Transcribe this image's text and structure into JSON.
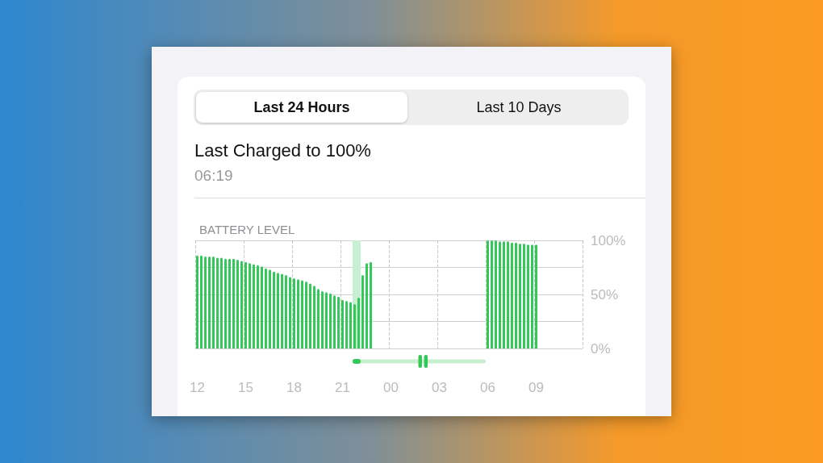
{
  "chart_data": {
    "type": "bar",
    "title": "BATTERY LEVEL",
    "annotations": [
      "Last 24 Hours",
      "Last 10 Days",
      "Last Charged to 100%",
      "06:19"
    ],
    "categories": [
      "12",
      null,
      null,
      null,
      null,
      null,
      null,
      null,
      null,
      null,
      null,
      null,
      "15",
      null,
      null,
      null,
      null,
      null,
      null,
      null,
      null,
      null,
      null,
      null,
      "18",
      null,
      null,
      null,
      null,
      null,
      null,
      null,
      null,
      null,
      null,
      null,
      "21",
      null,
      null,
      null,
      null,
      null,
      null,
      null,
      null,
      null,
      null,
      null,
      "00",
      null,
      null,
      null,
      null,
      null,
      null,
      null,
      null,
      null,
      null,
      null,
      "03",
      null,
      null,
      null,
      null,
      null,
      null,
      null,
      null,
      null,
      null,
      null,
      "06",
      null,
      null,
      null,
      null,
      null,
      null,
      null,
      null,
      null,
      null,
      null,
      "09",
      null,
      null,
      null,
      null,
      null,
      null,
      null,
      null,
      null,
      null,
      null
    ],
    "series": [
      {
        "color": "#c9efd2",
        "values": [
          null,
          null,
          null,
          null,
          null,
          null,
          null,
          null,
          null,
          null,
          null,
          null,
          null,
          null,
          null,
          null,
          null,
          null,
          null,
          null,
          null,
          null,
          null,
          null,
          null,
          null,
          null,
          null,
          null,
          null,
          null,
          null,
          null,
          null,
          null,
          null,
          null,
          null,
          null,
          100,
          100,
          null,
          null,
          null,
          null,
          null,
          null,
          null,
          null,
          null,
          null,
          null,
          null,
          null,
          null,
          null,
          null,
          null,
          null,
          null,
          null,
          null,
          null,
          null,
          null,
          null,
          null,
          null,
          null,
          null,
          null,
          null,
          null,
          null,
          null,
          null,
          null,
          null,
          null,
          null,
          null,
          null,
          null,
          null,
          null,
          null,
          null,
          null,
          null,
          null,
          null,
          null,
          null,
          null,
          null,
          null
        ]
      },
      {
        "color": "#34c759",
        "values": [
          86,
          86,
          85,
          85,
          85,
          84,
          84,
          83,
          83,
          83,
          82,
          81,
          80,
          79,
          78,
          77,
          76,
          74,
          73,
          71,
          70,
          69,
          68,
          66,
          65,
          64,
          63,
          62,
          60,
          58,
          55,
          53,
          52,
          51,
          49,
          48,
          45,
          44,
          43,
          41,
          47,
          68,
          79,
          80,
          null,
          null,
          null,
          null,
          null,
          null,
          null,
          null,
          null,
          null,
          null,
          null,
          null,
          null,
          null,
          null,
          null,
          null,
          null,
          null,
          null,
          null,
          null,
          null,
          null,
          null,
          null,
          null,
          100,
          100,
          100,
          99,
          99,
          99,
          98,
          98,
          97,
          97,
          96,
          96,
          96,
          null,
          null,
          null,
          null,
          null,
          null,
          null,
          null,
          null,
          null,
          null
        ]
      }
    ],
    "ylim": [
      0,
      100
    ],
    "yticks": [
      {
        "value": 0,
        "label": "0%"
      },
      {
        "value": 25,
        "label": null
      },
      {
        "value": 50,
        "label": "50%"
      },
      {
        "value": 75,
        "label": null
      },
      {
        "value": 100,
        "label": "100%"
      }
    ],
    "grid": true
  }
}
